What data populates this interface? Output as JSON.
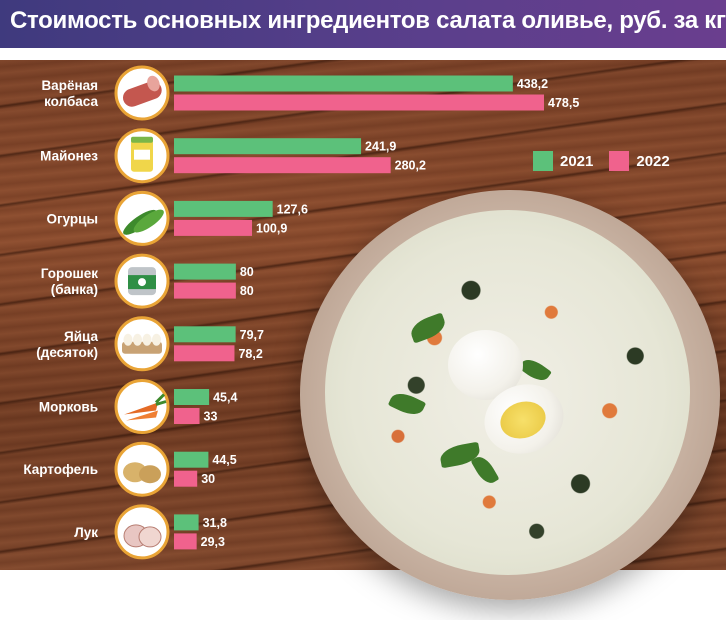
{
  "header": {
    "title": "Стоимость основных ингредиентов салата оливье, руб. за кг"
  },
  "colors": {
    "series_2021": "#5cc17a",
    "series_2022": "#f0628d",
    "icon_ring": "#e9a436"
  },
  "chart_data": {
    "type": "bar",
    "orientation": "horizontal",
    "title": "Стоимость основных ингредиентов салата оливье, руб. за кг",
    "categories": [
      [
        "Варёная",
        "колбаса"
      ],
      [
        "Майонез"
      ],
      [
        "Огурцы"
      ],
      [
        "Горошек",
        "(банка)"
      ],
      [
        "Яйца",
        "(десяток)"
      ],
      [
        "Морковь"
      ],
      [
        "Картофель"
      ],
      [
        "Лук"
      ]
    ],
    "category_icons": [
      "sausage-icon",
      "mayonnaise-jar-icon",
      "cucumbers-icon",
      "peas-can-icon",
      "egg-carton-icon",
      "carrots-icon",
      "potatoes-icon",
      "onions-icon"
    ],
    "series": [
      {
        "name": "2021",
        "values": [
          438.2,
          241.9,
          127.6,
          80,
          79.7,
          45.4,
          44.5,
          31.8
        ],
        "labels": [
          "438,2",
          "241,9",
          "127,6",
          "80",
          "79,7",
          "45,4",
          "44,5",
          "31,8"
        ]
      },
      {
        "name": "2022",
        "values": [
          478.5,
          280.2,
          100.9,
          80,
          78.2,
          33,
          30,
          29.3
        ],
        "labels": [
          "478,5",
          "280,2",
          "100,9",
          "80",
          "78,2",
          "33",
          "30",
          "29,3"
        ]
      }
    ],
    "xlim": [
      0,
      478.5
    ],
    "legend_position": "top-right",
    "grid": false
  }
}
